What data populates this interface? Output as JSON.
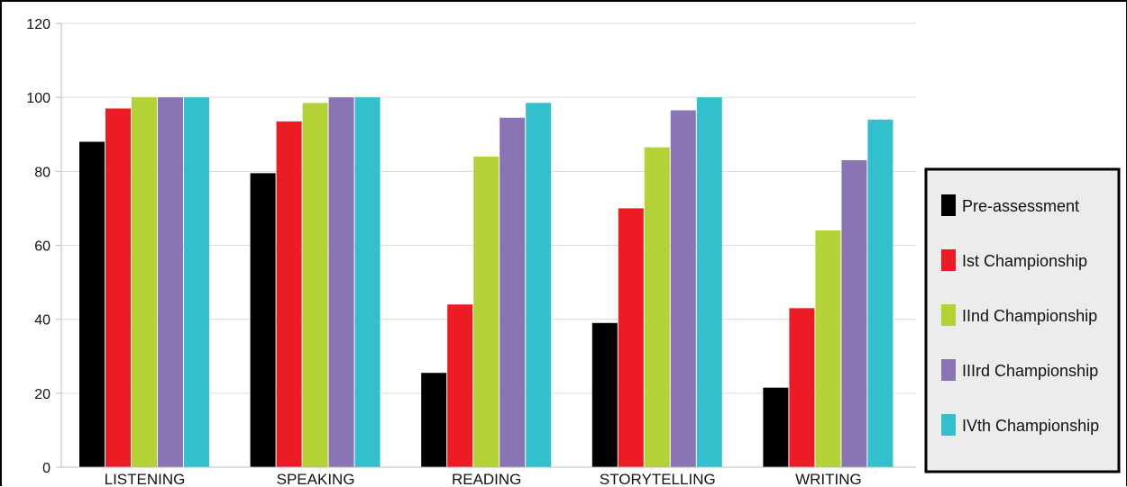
{
  "chart_data": {
    "type": "bar",
    "categories": [
      "LISTENING",
      "SPEAKING",
      "READING",
      "STORYTELLING",
      "WRITING"
    ],
    "series": [
      {
        "name": "Pre-assessment",
        "color": "#000000",
        "values": [
          88,
          79.5,
          25.5,
          39,
          21.5
        ]
      },
      {
        "name": "Ist Championship",
        "color": "#ed1c24",
        "values": [
          97,
          93.5,
          44,
          70,
          43
        ]
      },
      {
        "name": "IInd Championship",
        "color": "#b2d235",
        "values": [
          100,
          98.5,
          84,
          86.5,
          64
        ]
      },
      {
        "name": "IIIrd Championship",
        "color": "#8b74b4",
        "values": [
          100,
          100,
          94.5,
          96.5,
          83
        ]
      },
      {
        "name": "IVth Championship",
        "color": "#31c0cc",
        "values": [
          100,
          100,
          98.5,
          100,
          94
        ]
      }
    ],
    "yticks": [
      0,
      20,
      40,
      60,
      80,
      100,
      120
    ],
    "ylim": [
      0,
      120
    ],
    "grid": true,
    "legend": "right",
    "legend_background": "#ececec"
  }
}
